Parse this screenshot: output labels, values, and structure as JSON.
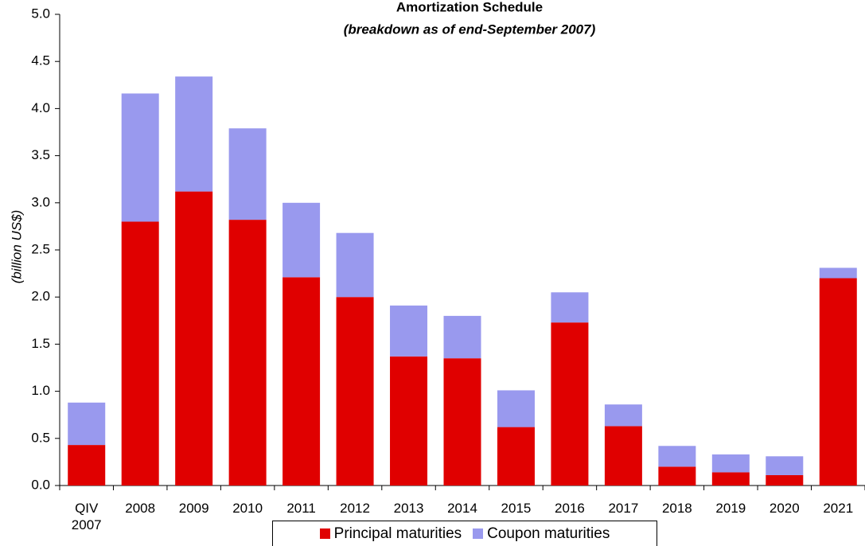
{
  "chart_data": {
    "type": "bar",
    "stacked": true,
    "title": "Amortization Schedule",
    "subtitle": "(breakdown as of end-September 2007)",
    "y_label": "(billion US$)",
    "categories": [
      "QIV 2007",
      "2008",
      "2009",
      "2010",
      "2011",
      "2012",
      "2013",
      "2014",
      "2015",
      "2016",
      "2017",
      "2018",
      "2019",
      "2020",
      "2021"
    ],
    "series": [
      {
        "name": "Principal maturities",
        "color": "#e00000",
        "values": [
          0.43,
          2.8,
          3.12,
          2.82,
          2.21,
          2.0,
          1.37,
          1.35,
          0.62,
          1.73,
          0.63,
          0.2,
          0.14,
          0.11,
          2.2
        ]
      },
      {
        "name": "Coupon maturities",
        "color": "#9999ee",
        "values": [
          0.45,
          1.36,
          1.22,
          0.97,
          0.79,
          0.68,
          0.54,
          0.45,
          0.39,
          0.32,
          0.23,
          0.22,
          0.19,
          0.2,
          0.11
        ]
      }
    ],
    "ylim": [
      0,
      5
    ],
    "yticks": [
      {
        "value": 0,
        "label": "0.0"
      },
      0.5,
      {
        "value": 1,
        "label": "1.0"
      },
      1.5,
      {
        "value": 2,
        "label": "2.0"
      },
      2.5,
      {
        "value": 3,
        "label": "3.0"
      },
      3.5,
      {
        "value": 4,
        "label": "4.0"
      },
      4.5,
      {
        "value": 5,
        "label": "5.0"
      }
    ],
    "legend": "bottom"
  }
}
